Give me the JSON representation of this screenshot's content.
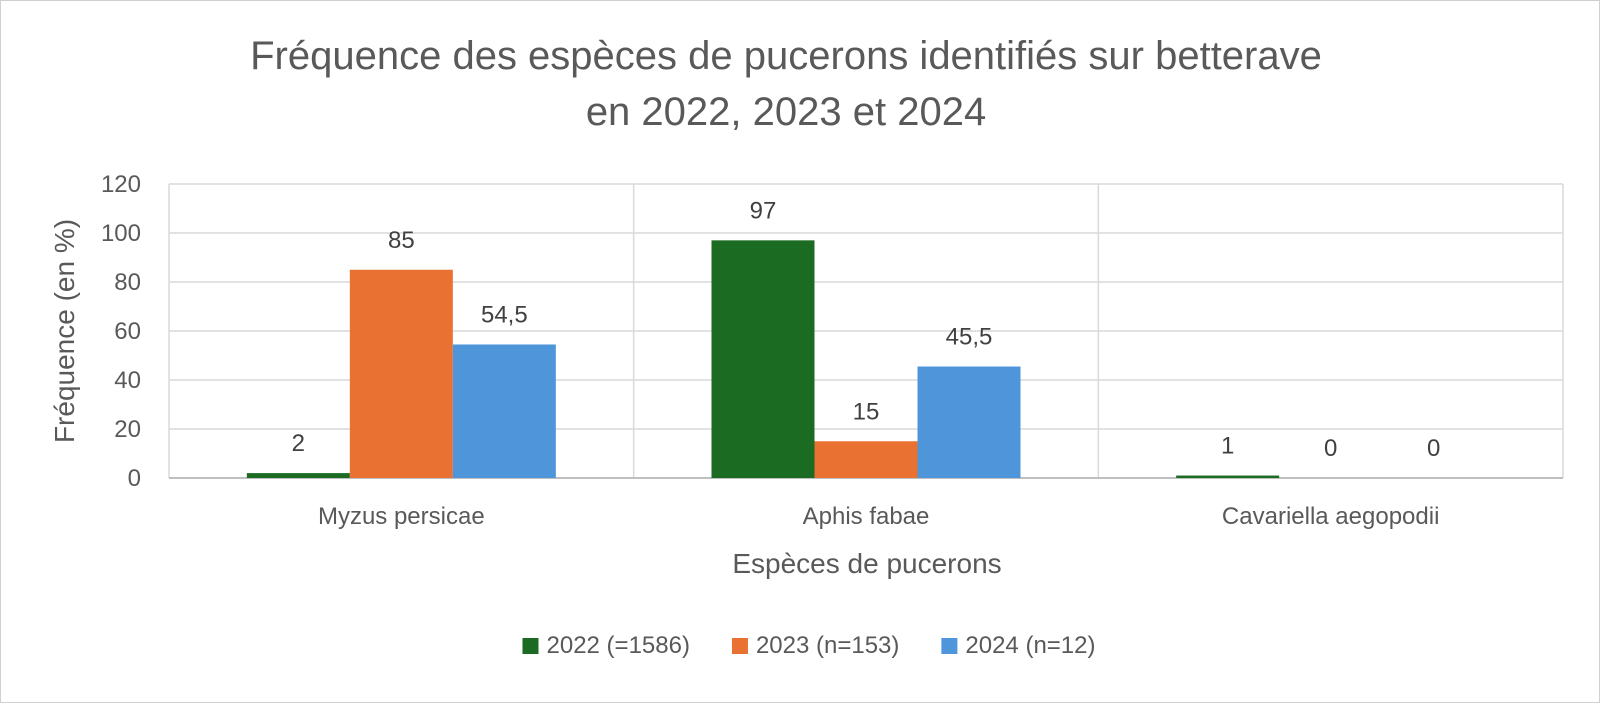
{
  "chart_data": {
    "type": "bar",
    "title": "Fréquence des espèces de pucerons identifiés sur betterave en 2022, 2023 et 2024",
    "title_lines": [
      "Fréquence des espèces de pucerons identifiés sur betterave",
      "en 2022, 2023 et 2024"
    ],
    "xlabel": "Espèces de pucerons",
    "ylabel": "Fréquence (en %)",
    "ylim": [
      0,
      120
    ],
    "yticks": [
      0,
      20,
      40,
      60,
      80,
      100,
      120
    ],
    "grid": true,
    "legend_position": "bottom",
    "categories": [
      "Myzus persicae",
      "Aphis fabae",
      "Cavariella aegopodii"
    ],
    "series": [
      {
        "name": "2022 (=1586)",
        "color": "#1b6b22",
        "values": [
          2,
          97,
          1
        ],
        "labels": [
          "2",
          "97",
          "1"
        ]
      },
      {
        "name": "2023 (n=153)",
        "color": "#e97132",
        "values": [
          85,
          15,
          0
        ],
        "labels": [
          "85",
          "15",
          "0"
        ]
      },
      {
        "name": "2024 (n=12)",
        "color": "#4e95d9",
        "values": [
          54.5,
          45.5,
          0
        ],
        "labels": [
          "54,5",
          "45,5",
          "0"
        ]
      }
    ]
  }
}
